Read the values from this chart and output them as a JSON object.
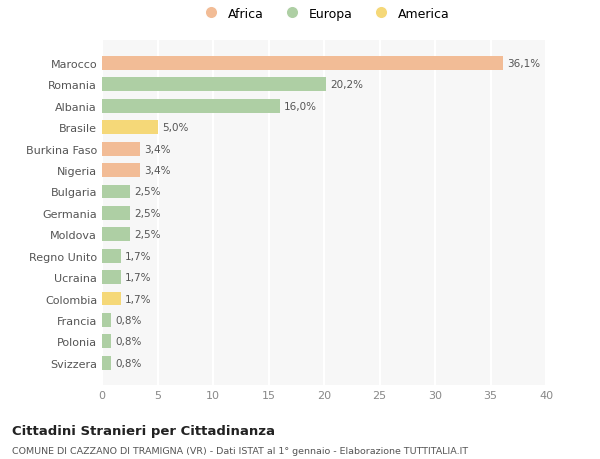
{
  "categories": [
    "Marocco",
    "Romania",
    "Albania",
    "Brasile",
    "Burkina Faso",
    "Nigeria",
    "Bulgaria",
    "Germania",
    "Moldova",
    "Regno Unito",
    "Ucraina",
    "Colombia",
    "Francia",
    "Polonia",
    "Svizzera"
  ],
  "values": [
    36.1,
    20.2,
    16.0,
    5.0,
    3.4,
    3.4,
    2.5,
    2.5,
    2.5,
    1.7,
    1.7,
    1.7,
    0.8,
    0.8,
    0.8
  ],
  "labels": [
    "36,1%",
    "20,2%",
    "16,0%",
    "5,0%",
    "3,4%",
    "3,4%",
    "2,5%",
    "2,5%",
    "2,5%",
    "1,7%",
    "1,7%",
    "1,7%",
    "0,8%",
    "0,8%",
    "0,8%"
  ],
  "colors": [
    "#f2bc96",
    "#aecfa4",
    "#aecfa4",
    "#f5d878",
    "#f2bc96",
    "#f2bc96",
    "#aecfa4",
    "#aecfa4",
    "#aecfa4",
    "#aecfa4",
    "#aecfa4",
    "#f5d878",
    "#aecfa4",
    "#aecfa4",
    "#aecfa4"
  ],
  "legend_labels": [
    "Africa",
    "Europa",
    "America"
  ],
  "legend_colors": [
    "#f2bc96",
    "#aecfa4",
    "#f5d878"
  ],
  "xlim": [
    0,
    40
  ],
  "xticks": [
    0,
    5,
    10,
    15,
    20,
    25,
    30,
    35,
    40
  ],
  "title": "Cittadini Stranieri per Cittadinanza",
  "subtitle": "COMUNE DI CAZZANO DI TRAMIGNA (VR) - Dati ISTAT al 1° gennaio - Elaborazione TUTTITALIA.IT",
  "background_color": "#ffffff",
  "plot_bg_color": "#f7f7f7",
  "grid_color": "#ffffff"
}
